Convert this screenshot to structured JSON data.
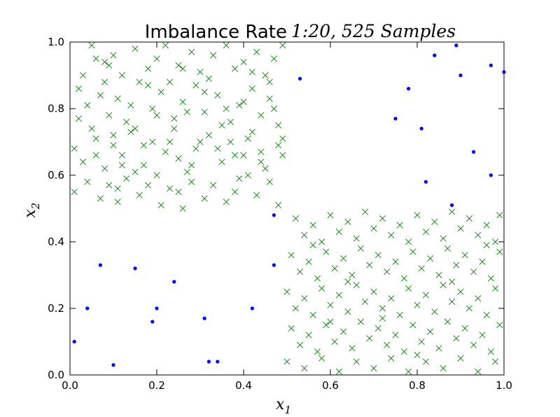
{
  "chart_data": {
    "type": "scatter",
    "title": {
      "text": "Imbalance Rate",
      "math": "1:20, 525 Samples"
    },
    "xlabel": {
      "base": "x",
      "sub": "1"
    },
    "ylabel": {
      "base": "x",
      "sub": "2"
    },
    "xlim": [
      0,
      1
    ],
    "ylim": [
      0,
      1
    ],
    "xticks": [
      "0.0",
      "0.2",
      "0.4",
      "0.6",
      "0.8",
      "1.0"
    ],
    "yticks": [
      "0.0",
      "0.2",
      "0.4",
      "0.6",
      "0.8",
      "1.0"
    ],
    "grid": false,
    "series": [
      {
        "marker": "x",
        "color": "#008000",
        "points": [
          [
            0.05,
            0.99
          ],
          [
            0.06,
            0.95
          ],
          [
            0.08,
            0.94
          ],
          [
            0.1,
            0.96
          ],
          [
            0.12,
            0.9
          ],
          [
            0.15,
            0.98
          ],
          [
            0.18,
            0.92
          ],
          [
            0.2,
            0.95
          ],
          [
            0.22,
            0.99
          ],
          [
            0.25,
            0.93
          ],
          [
            0.28,
            0.97
          ],
          [
            0.3,
            0.91
          ],
          [
            0.33,
            0.96
          ],
          [
            0.36,
            0.99
          ],
          [
            0.38,
            0.92
          ],
          [
            0.4,
            0.94
          ],
          [
            0.43,
            0.97
          ],
          [
            0.45,
            0.9
          ],
          [
            0.47,
            0.95
          ],
          [
            0.49,
            0.99
          ],
          [
            0.02,
            0.86
          ],
          [
            0.04,
            0.81
          ],
          [
            0.07,
            0.84
          ],
          [
            0.09,
            0.78
          ],
          [
            0.11,
            0.83
          ],
          [
            0.13,
            0.76
          ],
          [
            0.16,
            0.88
          ],
          [
            0.19,
            0.8
          ],
          [
            0.21,
            0.85
          ],
          [
            0.24,
            0.77
          ],
          [
            0.26,
            0.82
          ],
          [
            0.29,
            0.87
          ],
          [
            0.31,
            0.79
          ],
          [
            0.34,
            0.84
          ],
          [
            0.37,
            0.76
          ],
          [
            0.39,
            0.81
          ],
          [
            0.42,
            0.86
          ],
          [
            0.44,
            0.78
          ],
          [
            0.46,
            0.83
          ],
          [
            0.48,
            0.75
          ],
          [
            0.01,
            0.68
          ],
          [
            0.03,
            0.64
          ],
          [
            0.06,
            0.71
          ],
          [
            0.08,
            0.62
          ],
          [
            0.1,
            0.69
          ],
          [
            0.12,
            0.66
          ],
          [
            0.14,
            0.73
          ],
          [
            0.17,
            0.63
          ],
          [
            0.19,
            0.7
          ],
          [
            0.22,
            0.67
          ],
          [
            0.24,
            0.74
          ],
          [
            0.27,
            0.61
          ],
          [
            0.29,
            0.68
          ],
          [
            0.32,
            0.72
          ],
          [
            0.35,
            0.64
          ],
          [
            0.37,
            0.7
          ],
          [
            0.4,
            0.66
          ],
          [
            0.42,
            0.73
          ],
          [
            0.45,
            0.62
          ],
          [
            0.48,
            0.69
          ],
          [
            0.01,
            0.55
          ],
          [
            0.04,
            0.58
          ],
          [
            0.07,
            0.53
          ],
          [
            0.09,
            0.57
          ],
          [
            0.11,
            0.52
          ],
          [
            0.13,
            0.59
          ],
          [
            0.16,
            0.54
          ],
          [
            0.18,
            0.57
          ],
          [
            0.21,
            0.51
          ],
          [
            0.23,
            0.56
          ],
          [
            0.26,
            0.5
          ],
          [
            0.28,
            0.58
          ],
          [
            0.31,
            0.53
          ],
          [
            0.33,
            0.57
          ],
          [
            0.36,
            0.52
          ],
          [
            0.38,
            0.55
          ],
          [
            0.41,
            0.6
          ],
          [
            0.43,
            0.54
          ],
          [
            0.46,
            0.58
          ],
          [
            0.48,
            0.51
          ],
          [
            0.03,
            0.9
          ],
          [
            0.05,
            0.74
          ],
          [
            0.08,
            0.88
          ],
          [
            0.1,
            0.72
          ],
          [
            0.14,
            0.81
          ],
          [
            0.17,
            0.69
          ],
          [
            0.2,
            0.78
          ],
          [
            0.23,
            0.88
          ],
          [
            0.25,
            0.65
          ],
          [
            0.27,
            0.79
          ],
          [
            0.3,
            0.7
          ],
          [
            0.32,
            0.89
          ],
          [
            0.35,
            0.75
          ],
          [
            0.38,
            0.66
          ],
          [
            0.4,
            0.82
          ],
          [
            0.41,
            0.71
          ],
          [
            0.44,
            0.67
          ],
          [
            0.47,
            0.8
          ],
          [
            0.49,
            0.71
          ],
          [
            0.15,
            0.61
          ],
          [
            0.02,
            0.77
          ],
          [
            0.06,
            0.66
          ],
          [
            0.09,
            0.93
          ],
          [
            0.12,
            0.63
          ],
          [
            0.15,
            0.74
          ],
          [
            0.18,
            0.87
          ],
          [
            0.2,
            0.6
          ],
          [
            0.23,
            0.7
          ],
          [
            0.26,
            0.92
          ],
          [
            0.28,
            0.63
          ],
          [
            0.31,
            0.85
          ],
          [
            0.34,
            0.68
          ],
          [
            0.36,
            0.8
          ],
          [
            0.39,
            0.59
          ],
          [
            0.42,
            0.91
          ],
          [
            0.44,
            0.64
          ],
          [
            0.46,
            0.88
          ],
          [
            0.49,
            0.66
          ],
          [
            0.11,
            0.56
          ],
          [
            0.25,
            0.55
          ],
          [
            0.52,
            0.47
          ],
          [
            0.54,
            0.42
          ],
          [
            0.56,
            0.45
          ],
          [
            0.58,
            0.4
          ],
          [
            0.6,
            0.48
          ],
          [
            0.62,
            0.43
          ],
          [
            0.64,
            0.46
          ],
          [
            0.66,
            0.41
          ],
          [
            0.68,
            0.49
          ],
          [
            0.7,
            0.44
          ],
          [
            0.72,
            0.47
          ],
          [
            0.74,
            0.42
          ],
          [
            0.76,
            0.45
          ],
          [
            0.78,
            0.4
          ],
          [
            0.8,
            0.48
          ],
          [
            0.82,
            0.43
          ],
          [
            0.84,
            0.46
          ],
          [
            0.86,
            0.41
          ],
          [
            0.88,
            0.49
          ],
          [
            0.9,
            0.44
          ],
          [
            0.92,
            0.47
          ],
          [
            0.94,
            0.42
          ],
          [
            0.96,
            0.45
          ],
          [
            0.98,
            0.4
          ],
          [
            0.99,
            0.48
          ],
          [
            0.51,
            0.36
          ],
          [
            0.53,
            0.31
          ],
          [
            0.55,
            0.34
          ],
          [
            0.57,
            0.29
          ],
          [
            0.59,
            0.37
          ],
          [
            0.61,
            0.32
          ],
          [
            0.63,
            0.35
          ],
          [
            0.65,
            0.3
          ],
          [
            0.67,
            0.38
          ],
          [
            0.69,
            0.33
          ],
          [
            0.71,
            0.36
          ],
          [
            0.73,
            0.31
          ],
          [
            0.75,
            0.34
          ],
          [
            0.77,
            0.29
          ],
          [
            0.79,
            0.37
          ],
          [
            0.81,
            0.32
          ],
          [
            0.83,
            0.35
          ],
          [
            0.85,
            0.3
          ],
          [
            0.87,
            0.38
          ],
          [
            0.89,
            0.33
          ],
          [
            0.91,
            0.36
          ],
          [
            0.93,
            0.31
          ],
          [
            0.95,
            0.34
          ],
          [
            0.97,
            0.29
          ],
          [
            0.99,
            0.37
          ],
          [
            0.5,
            0.25
          ],
          [
            0.52,
            0.2
          ],
          [
            0.54,
            0.23
          ],
          [
            0.56,
            0.18
          ],
          [
            0.58,
            0.26
          ],
          [
            0.6,
            0.21
          ],
          [
            0.62,
            0.24
          ],
          [
            0.64,
            0.19
          ],
          [
            0.66,
            0.27
          ],
          [
            0.68,
            0.22
          ],
          [
            0.7,
            0.25
          ],
          [
            0.72,
            0.2
          ],
          [
            0.74,
            0.23
          ],
          [
            0.76,
            0.18
          ],
          [
            0.78,
            0.26
          ],
          [
            0.8,
            0.21
          ],
          [
            0.82,
            0.24
          ],
          [
            0.84,
            0.19
          ],
          [
            0.86,
            0.27
          ],
          [
            0.88,
            0.22
          ],
          [
            0.9,
            0.25
          ],
          [
            0.92,
            0.2
          ],
          [
            0.94,
            0.23
          ],
          [
            0.96,
            0.18
          ],
          [
            0.98,
            0.26
          ],
          [
            0.51,
            0.14
          ],
          [
            0.53,
            0.09
          ],
          [
            0.55,
            0.12
          ],
          [
            0.57,
            0.07
          ],
          [
            0.59,
            0.15
          ],
          [
            0.61,
            0.1
          ],
          [
            0.63,
            0.13
          ],
          [
            0.65,
            0.08
          ],
          [
            0.67,
            0.16
          ],
          [
            0.69,
            0.11
          ],
          [
            0.71,
            0.14
          ],
          [
            0.73,
            0.09
          ],
          [
            0.75,
            0.12
          ],
          [
            0.77,
            0.07
          ],
          [
            0.79,
            0.15
          ],
          [
            0.81,
            0.1
          ],
          [
            0.83,
            0.13
          ],
          [
            0.85,
            0.08
          ],
          [
            0.87,
            0.16
          ],
          [
            0.89,
            0.11
          ],
          [
            0.91,
            0.14
          ],
          [
            0.93,
            0.09
          ],
          [
            0.95,
            0.12
          ],
          [
            0.97,
            0.07
          ],
          [
            0.99,
            0.15
          ],
          [
            0.5,
            0.04
          ],
          [
            0.54,
            0.02
          ],
          [
            0.58,
            0.05
          ],
          [
            0.62,
            0.01
          ],
          [
            0.66,
            0.04
          ],
          [
            0.7,
            0.02
          ],
          [
            0.74,
            0.05
          ],
          [
            0.78,
            0.01
          ],
          [
            0.82,
            0.04
          ],
          [
            0.86,
            0.02
          ],
          [
            0.9,
            0.05
          ],
          [
            0.94,
            0.01
          ],
          [
            0.98,
            0.04
          ],
          [
            0.56,
            0.39
          ],
          [
            0.64,
            0.28
          ],
          [
            0.72,
            0.17
          ],
          [
            0.8,
            0.06
          ],
          [
            0.88,
            0.28
          ],
          [
            0.96,
            0.39
          ],
          [
            0.6,
            0.16
          ]
        ]
      },
      {
        "marker": "dot",
        "color": "#0000ff",
        "points": [
          [
            0.01,
            0.1
          ],
          [
            0.04,
            0.2
          ],
          [
            0.07,
            0.33
          ],
          [
            0.1,
            0.03
          ],
          [
            0.15,
            0.32
          ],
          [
            0.19,
            0.16
          ],
          [
            0.2,
            0.2
          ],
          [
            0.24,
            0.28
          ],
          [
            0.31,
            0.17
          ],
          [
            0.32,
            0.04
          ],
          [
            0.34,
            0.04
          ],
          [
            0.42,
            0.2
          ],
          [
            0.47,
            0.33
          ],
          [
            0.47,
            0.48
          ],
          [
            0.53,
            0.89
          ],
          [
            0.75,
            0.77
          ],
          [
            0.78,
            0.86
          ],
          [
            0.81,
            0.74
          ],
          [
            0.82,
            0.58
          ],
          [
            0.84,
            0.96
          ],
          [
            0.88,
            0.51
          ],
          [
            0.89,
            0.99
          ],
          [
            0.9,
            0.9
          ],
          [
            0.93,
            0.67
          ],
          [
            0.97,
            0.6
          ],
          [
            0.97,
            0.93
          ],
          [
            1.0,
            0.91
          ]
        ]
      }
    ]
  }
}
